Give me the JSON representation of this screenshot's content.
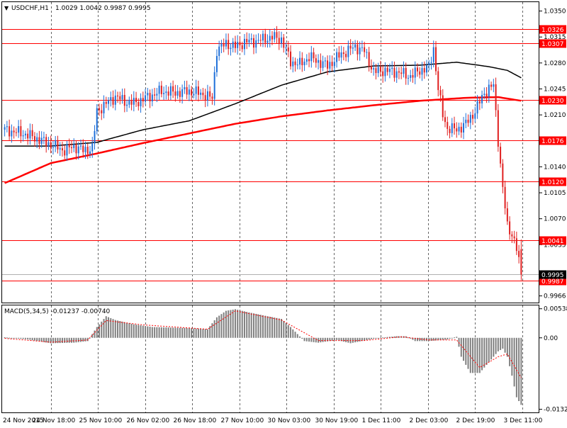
{
  "header": {
    "menu_glyph": "▼",
    "symbol": "USDCHF,H1",
    "ohlc": "1.0029 1.0042 0.9987 0.9995"
  },
  "macd": {
    "title": "MACD(5,34,5) -0.01237 -0.00740",
    "ticks": [
      "0.00538",
      "0.00",
      "-0.01322"
    ]
  },
  "price_axis": {
    "ticks": [
      "1.0350",
      "1.0315",
      "1.0280",
      "1.0245",
      "1.0210",
      "1.0140",
      "1.0105",
      "1.0070",
      "1.0035",
      "0.9966"
    ]
  },
  "levels": [
    {
      "value": "1.0326",
      "color": "#ff0000"
    },
    {
      "value": "1.0307",
      "color": "#ff0000"
    },
    {
      "value": "1.0230",
      "color": "#ff0000"
    },
    {
      "value": "1.0176",
      "color": "#ff0000"
    },
    {
      "value": "1.0120",
      "color": "#ff0000"
    },
    {
      "value": "1.0041",
      "color": "#ff0000"
    },
    {
      "value": "0.9987",
      "color": "#ff0000"
    }
  ],
  "bid": {
    "value": "0.9995",
    "color": "#000000"
  },
  "time_axis": {
    "labels": [
      "24 Nov 2015",
      "24 Nov 18:00",
      "25 Nov 10:00",
      "26 Nov 02:00",
      "26 Nov 18:00",
      "27 Nov 10:00",
      "30 Nov 03:00",
      "30 Nov 19:00",
      "1 Dec 11:00",
      "2 Dec 03:00",
      "2 Dec 19:00",
      "3 Dec 11:00"
    ]
  },
  "colors": {
    "bull": "#1e6fd9",
    "bear": "#e02020",
    "ma_slow": "#ff0000",
    "ma_fast": "#000000",
    "grid": "#000000",
    "macd_hist": "#808080",
    "macd_signal": "#ff0000"
  },
  "chart_data": {
    "type": "candlestick",
    "symbol": "USDCHF",
    "timeframe": "H1",
    "last_bar": {
      "open": 1.0029,
      "high": 1.0042,
      "low": 0.9987,
      "close": 0.9995
    },
    "price_range": [
      0.9957,
      1.0362
    ],
    "horizontal_levels": [
      1.0326,
      1.0307,
      1.023,
      1.0176,
      1.012,
      1.0041,
      0.9987
    ],
    "close_path": [
      [
        0,
        1.019
      ],
      [
        8,
        1.0185
      ],
      [
        14,
        1.0178
      ],
      [
        20,
        1.017
      ],
      [
        26,
        1.0162
      ],
      [
        30,
        1.0168
      ],
      [
        34,
        1.0162
      ],
      [
        38,
        1.0165
      ],
      [
        40,
        1.0215
      ],
      [
        44,
        1.0225
      ],
      [
        48,
        1.0235
      ],
      [
        52,
        1.0228
      ],
      [
        56,
        1.0226
      ],
      [
        62,
        1.0234
      ],
      [
        68,
        1.0242
      ],
      [
        74,
        1.024
      ],
      [
        80,
        1.0242
      ],
      [
        86,
        1.0238
      ],
      [
        90,
        1.0232
      ],
      [
        92,
        1.0298
      ],
      [
        96,
        1.0306
      ],
      [
        100,
        1.0302
      ],
      [
        104,
        1.0308
      ],
      [
        110,
        1.031
      ],
      [
        116,
        1.0315
      ],
      [
        120,
        1.0312
      ],
      [
        124,
        1.0282
      ],
      [
        128,
        1.0278
      ],
      [
        132,
        1.0288
      ],
      [
        136,
        1.0282
      ],
      [
        140,
        1.0276
      ],
      [
        146,
        1.0292
      ],
      [
        152,
        1.0302
      ],
      [
        156,
        1.0296
      ],
      [
        160,
        1.0268
      ],
      [
        164,
        1.027
      ],
      [
        170,
        1.0268
      ],
      [
        176,
        1.0262
      ],
      [
        180,
        1.027
      ],
      [
        184,
        1.0274
      ],
      [
        186,
        1.03
      ],
      [
        188,
        1.0245
      ],
      [
        190,
        1.021
      ],
      [
        192,
        1.0192
      ],
      [
        196,
        1.019
      ],
      [
        200,
        1.0198
      ],
      [
        204,
        1.0215
      ],
      [
        208,
        1.024
      ],
      [
        212,
        1.025
      ],
      [
        214,
        1.0176
      ],
      [
        216,
        1.011
      ],
      [
        218,
        1.006
      ],
      [
        220,
        1.005
      ],
      [
        222,
        1.0029
      ],
      [
        224,
        0.9995
      ]
    ],
    "ma_slow_path": [
      [
        0,
        1.0118
      ],
      [
        20,
        1.0145
      ],
      [
        40,
        1.0158
      ],
      [
        60,
        1.0172
      ],
      [
        80,
        1.0185
      ],
      [
        100,
        1.0198
      ],
      [
        120,
        1.0208
      ],
      [
        140,
        1.0216
      ],
      [
        160,
        1.0223
      ],
      [
        180,
        1.0229
      ],
      [
        200,
        1.0233
      ],
      [
        214,
        1.0234
      ],
      [
        224,
        1.0229
      ]
    ],
    "ma_fast_path": [
      [
        0,
        1.0168
      ],
      [
        20,
        1.0168
      ],
      [
        40,
        1.0173
      ],
      [
        60,
        1.019
      ],
      [
        80,
        1.0202
      ],
      [
        100,
        1.0225
      ],
      [
        120,
        1.025
      ],
      [
        140,
        1.0268
      ],
      [
        160,
        1.0276
      ],
      [
        180,
        1.0277
      ],
      [
        196,
        1.0281
      ],
      [
        210,
        1.0275
      ],
      [
        218,
        1.027
      ],
      [
        224,
        1.026
      ]
    ],
    "macd_histogram": [
      [
        0,
        0.0001
      ],
      [
        10,
        -0.0003
      ],
      [
        20,
        -0.001
      ],
      [
        30,
        -0.0009
      ],
      [
        36,
        -0.0006
      ],
      [
        40,
        0.002
      ],
      [
        44,
        0.004
      ],
      [
        48,
        0.0033
      ],
      [
        56,
        0.0025
      ],
      [
        64,
        0.002
      ],
      [
        72,
        0.0019
      ],
      [
        80,
        0.0018
      ],
      [
        88,
        0.0016
      ],
      [
        92,
        0.0038
      ],
      [
        96,
        0.005
      ],
      [
        100,
        0.0053
      ],
      [
        106,
        0.0047
      ],
      [
        114,
        0.004
      ],
      [
        120,
        0.0035
      ],
      [
        124,
        0.002
      ],
      [
        130,
        -0.0006
      ],
      [
        136,
        -0.0009
      ],
      [
        144,
        -0.0004
      ],
      [
        150,
        -0.001
      ],
      [
        156,
        -0.0005
      ],
      [
        162,
        0.0
      ],
      [
        170,
        0.0003
      ],
      [
        174,
        0.0003
      ],
      [
        178,
        -0.0006
      ],
      [
        184,
        -0.0006
      ],
      [
        192,
        -0.0003
      ],
      [
        196,
        0.0002
      ],
      [
        198,
        -0.0035
      ],
      [
        202,
        -0.0065
      ],
      [
        206,
        -0.0065
      ],
      [
        210,
        -0.0045
      ],
      [
        214,
        -0.0025
      ],
      [
        216,
        -0.002
      ],
      [
        218,
        -0.0035
      ],
      [
        220,
        -0.007
      ],
      [
        222,
        -0.011
      ],
      [
        224,
        -0.0124
      ]
    ],
    "macd_signal_path": [
      [
        0,
        -0.0001
      ],
      [
        20,
        -0.0008
      ],
      [
        36,
        -0.0004
      ],
      [
        44,
        0.0032
      ],
      [
        60,
        0.0024
      ],
      [
        88,
        0.0016
      ],
      [
        100,
        0.005
      ],
      [
        120,
        0.0033
      ],
      [
        136,
        -0.0005
      ],
      [
        156,
        -0.0005
      ],
      [
        172,
        0.0002
      ],
      [
        184,
        -0.0004
      ],
      [
        196,
        -0.0004
      ],
      [
        206,
        -0.0055
      ],
      [
        214,
        -0.0035
      ],
      [
        218,
        -0.003
      ],
      [
        224,
        -0.0074
      ]
    ],
    "macd_range": [
      -0.0138,
      0.006
    ],
    "bar_count": 225
  }
}
